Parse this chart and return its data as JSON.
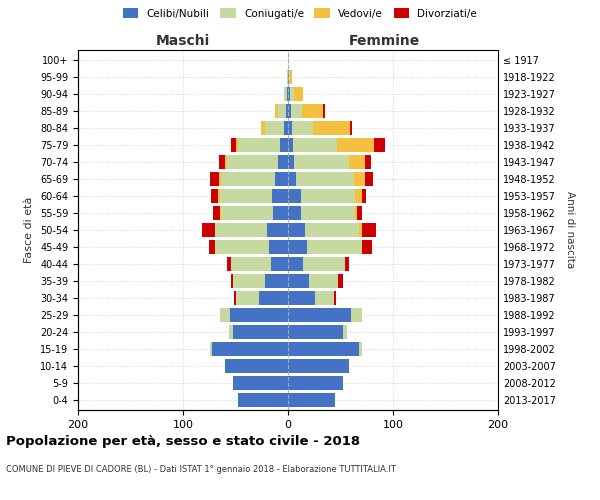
{
  "age_groups": [
    "0-4",
    "5-9",
    "10-14",
    "15-19",
    "20-24",
    "25-29",
    "30-34",
    "35-39",
    "40-44",
    "45-49",
    "50-54",
    "55-59",
    "60-64",
    "65-69",
    "70-74",
    "75-79",
    "80-84",
    "85-89",
    "90-94",
    "95-99",
    "100+"
  ],
  "birth_years": [
    "2013-2017",
    "2008-2012",
    "2003-2007",
    "1998-2002",
    "1993-1997",
    "1988-1992",
    "1983-1987",
    "1978-1982",
    "1973-1977",
    "1968-1972",
    "1963-1967",
    "1958-1962",
    "1953-1957",
    "1948-1952",
    "1943-1947",
    "1938-1942",
    "1933-1937",
    "1928-1932",
    "1923-1927",
    "1918-1922",
    "≤ 1917"
  ],
  "maschi_celibi": [
    48,
    52,
    60,
    72,
    52,
    55,
    28,
    22,
    16,
    18,
    20,
    14,
    15,
    12,
    10,
    8,
    4,
    2,
    1,
    0,
    0
  ],
  "maschi_coniugati": [
    0,
    0,
    0,
    2,
    4,
    10,
    22,
    30,
    38,
    52,
    50,
    50,
    50,
    52,
    48,
    40,
    18,
    8,
    3,
    1,
    0
  ],
  "maschi_vedovi": [
    0,
    0,
    0,
    0,
    0,
    0,
    0,
    0,
    0,
    0,
    0,
    1,
    2,
    2,
    2,
    2,
    4,
    2,
    0,
    0,
    0
  ],
  "maschi_divorziati": [
    0,
    0,
    0,
    0,
    0,
    0,
    1,
    2,
    4,
    5,
    12,
    6,
    6,
    8,
    6,
    4,
    0,
    0,
    0,
    0,
    0
  ],
  "femmine_nubili": [
    45,
    52,
    58,
    68,
    52,
    60,
    26,
    20,
    14,
    18,
    16,
    12,
    12,
    8,
    6,
    5,
    4,
    3,
    2,
    1,
    0
  ],
  "femmine_coniugate": [
    0,
    0,
    0,
    2,
    4,
    10,
    18,
    28,
    40,
    52,
    52,
    52,
    52,
    55,
    52,
    42,
    20,
    10,
    4,
    1,
    0
  ],
  "femmine_vedove": [
    0,
    0,
    0,
    0,
    0,
    0,
    0,
    0,
    0,
    0,
    2,
    2,
    6,
    10,
    15,
    35,
    35,
    20,
    8,
    2,
    0
  ],
  "femmine_divorziate": [
    0,
    0,
    0,
    0,
    0,
    0,
    2,
    4,
    4,
    10,
    14,
    4,
    4,
    8,
    6,
    10,
    2,
    2,
    0,
    0,
    0
  ],
  "color_celibi": "#4472c4",
  "color_coniugati": "#c5d9a0",
  "color_vedovi": "#f5c040",
  "color_divorziati": "#cc0000",
  "title": "Popolazione per età, sesso e stato civile - 2018",
  "subtitle": "COMUNE DI PIEVE DI CADORE (BL) - Dati ISTAT 1° gennaio 2018 - Elaborazione TUTTITALIA.IT",
  "xlabel_left": "Maschi",
  "xlabel_right": "Femmine",
  "ylabel": "Fasce di età",
  "ylabel_right": "Anni di nascita",
  "xlim": 200,
  "bg_color": "#ffffff",
  "grid_color": "#cccccc"
}
